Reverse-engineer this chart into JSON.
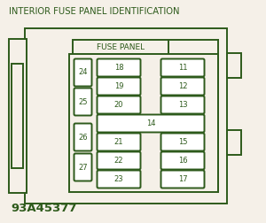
{
  "title": "INTERIOR FUSE PANEL IDENTIFICATION",
  "panel_label": "FUSE PANEL",
  "watermark": "93A45377",
  "bg_color": "#f5f0e8",
  "line_color": "#2d5a1b",
  "text_color": "#2d5a1b",
  "fuse_color": "#ffffff",
  "title_fontsize": 7.2,
  "label_fontsize": 6.5,
  "fuse_fontsize": 6.0,
  "watermark_fontsize": 9.5,
  "left_fuses": [
    {
      "num": "24",
      "row": 0
    },
    {
      "num": "25",
      "row": 1
    },
    {
      "num": "26",
      "row": 2
    },
    {
      "num": "27",
      "row": 3
    }
  ],
  "center_fuses": [
    {
      "num": "18",
      "row": 0,
      "wide": false
    },
    {
      "num": "19",
      "row": 1,
      "wide": false
    },
    {
      "num": "20",
      "row": 2,
      "wide": false
    },
    {
      "num": "14",
      "row": 3,
      "wide": true
    },
    {
      "num": "21",
      "row": 4,
      "wide": false
    },
    {
      "num": "22",
      "row": 5,
      "wide": false
    },
    {
      "num": "23",
      "row": 6,
      "wide": false
    }
  ],
  "right_fuses": [
    {
      "num": "11",
      "row": 0
    },
    {
      "num": "12",
      "row": 1
    },
    {
      "num": "13",
      "row": 2
    },
    {
      "num": "15",
      "row": 4
    },
    {
      "num": "16",
      "row": 5
    },
    {
      "num": "17",
      "row": 6
    }
  ]
}
